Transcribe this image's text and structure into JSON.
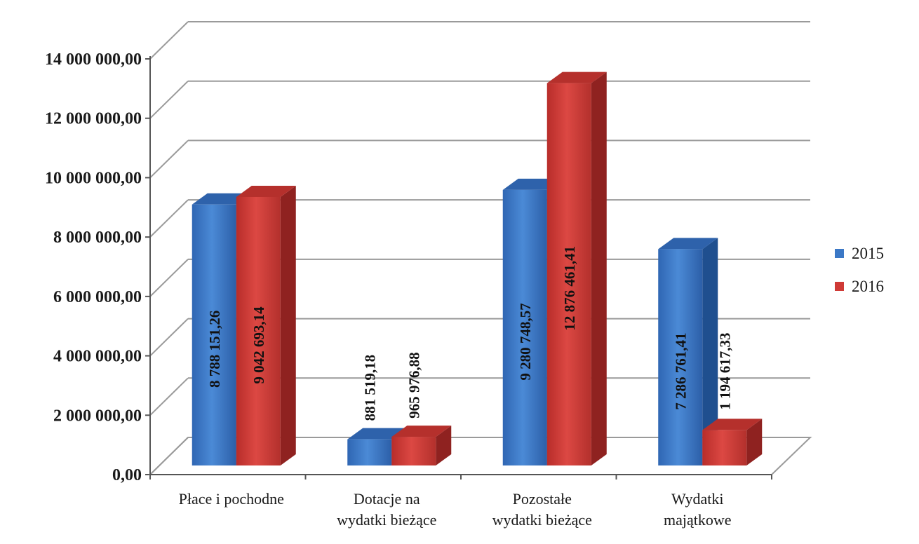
{
  "chart_data": {
    "type": "bar",
    "title": "",
    "xlabel": "",
    "ylabel": "",
    "categories": [
      [
        "Płace i pochodne"
      ],
      [
        "Dotacje na",
        "wydatki bieżące"
      ],
      [
        "Pozostałe",
        "wydatki bieżące"
      ],
      [
        "Wydatki",
        "majątkowe"
      ]
    ],
    "series": [
      {
        "name": "2015",
        "color": "#3b78c6",
        "values": [
          8788151.26,
          881519.18,
          9280748.57,
          7286761.41
        ],
        "labels": [
          "8 788 151,26",
          "881 519,18",
          "9 280 748,57",
          "7 286 761,41"
        ]
      },
      {
        "name": "2016",
        "color": "#cf3a36",
        "values": [
          9042693.14,
          965976.88,
          12876461.41,
          1194617.33
        ],
        "labels": [
          "9 042 693,14",
          "965 976,88",
          "12 876 461,41",
          "1 194 617,33"
        ]
      }
    ],
    "ylim": [
      0,
      14000000
    ],
    "yticks": [
      0,
      2000000,
      4000000,
      6000000,
      8000000,
      10000000,
      12000000,
      14000000
    ],
    "ytick_labels": [
      "0,00",
      "2 000 000,00",
      "4 000 000,00",
      "6 000 000,00",
      "8 000 000,00",
      "10 000 000,00",
      "12 000 000,00",
      "14 000 000,00"
    ],
    "grid": true,
    "legend_position": "right",
    "style": "3d-clustered-column"
  }
}
